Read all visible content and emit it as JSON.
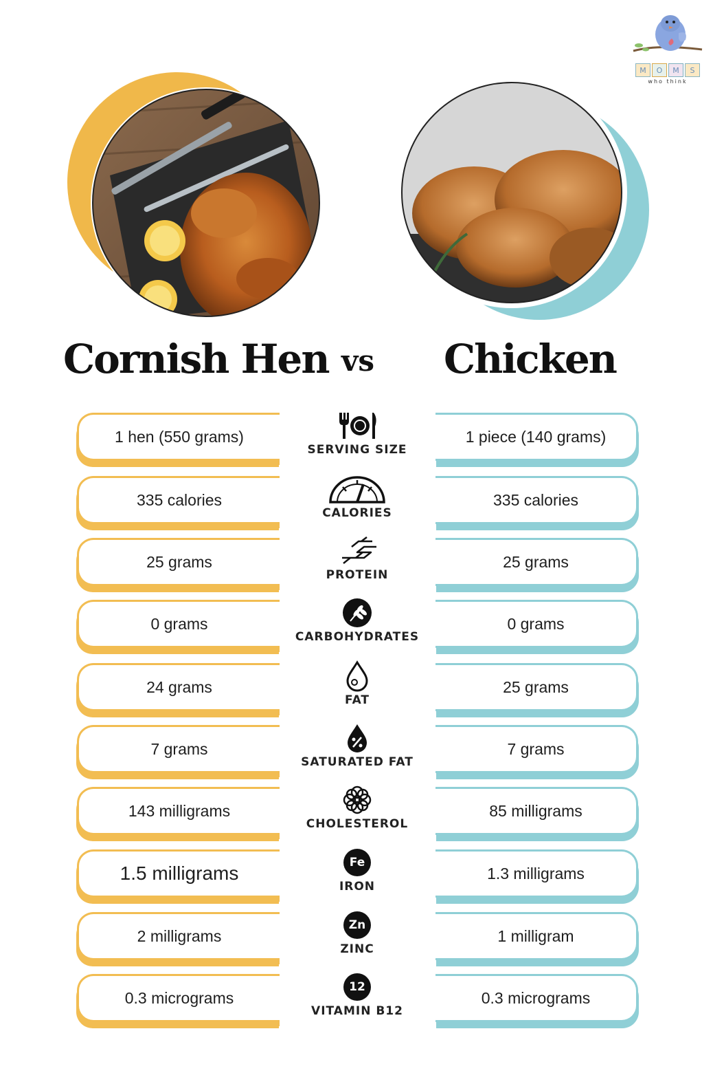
{
  "logo": {
    "letters": [
      "M",
      "O",
      "M",
      "S"
    ],
    "tagline": "who think"
  },
  "header": {
    "left_title": "Cornish Hen",
    "vs": "vs",
    "right_title": "Chicken"
  },
  "colors": {
    "left_accent": "#f2bd52",
    "right_accent": "#8fcfd6"
  },
  "rows": [
    {
      "label": "SERVING SIZE",
      "icon": "utensils-icon",
      "left": "1 hen (550 grams)",
      "right": "1 piece (140 grams)"
    },
    {
      "label": "CALORIES",
      "icon": "gauge-icon",
      "left": "335 calories",
      "right": "335 calories"
    },
    {
      "label": "PROTEIN",
      "icon": "protein-strand-icon",
      "left": "25 grams",
      "right": "25 grams"
    },
    {
      "label": "CARBOHYDRATES",
      "icon": "wheat-icon",
      "left": "0 grams",
      "right": "0 grams"
    },
    {
      "label": "FAT",
      "icon": "drop-icon",
      "left": "24 grams",
      "right": "25 grams"
    },
    {
      "label": "SATURATED FAT",
      "icon": "percent-drop-icon",
      "left": "7 grams",
      "right": "7 grams"
    },
    {
      "label": "CHOLESTEROL",
      "icon": "flower-icon",
      "left": "143 milligrams",
      "right": "85 milligrams"
    },
    {
      "label": "IRON",
      "icon": "fe-badge-icon",
      "badge": "Fe",
      "left": "1.5 milligrams",
      "right": "1.3 milligrams"
    },
    {
      "label": "ZINC",
      "icon": "zn-badge-icon",
      "badge": "Zn",
      "left": "2 milligrams",
      "right": "1 milligram"
    },
    {
      "label": "VITAMIN B12",
      "icon": "b12-badge-icon",
      "badge": "12",
      "left": "0.3 micrograms",
      "right": "0.3 micrograms"
    }
  ]
}
